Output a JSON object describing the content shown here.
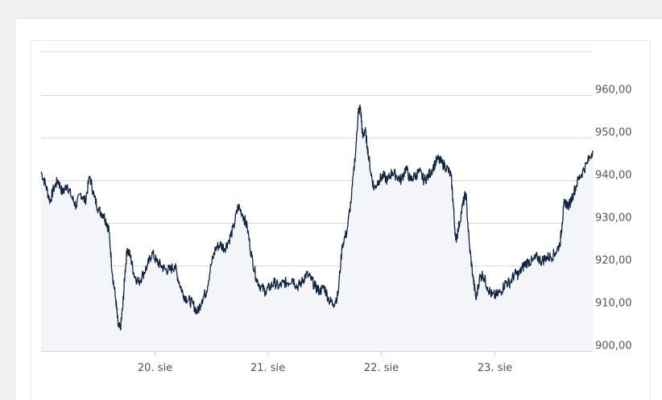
{
  "colors": {
    "line": "#0f2440",
    "area": "#f4f5f8",
    "grid": "#d9d9d9",
    "tick_text": "#555555"
  },
  "chart_data": {
    "type": "area",
    "grid": true,
    "ylim": [
      900,
      970
    ],
    "y_ticks": [
      {
        "value": 960,
        "label": "960,00"
      },
      {
        "value": 950,
        "label": "950,00"
      },
      {
        "value": 940,
        "label": "940,00"
      },
      {
        "value": 930,
        "label": "930,00"
      },
      {
        "value": 920,
        "label": "920,00"
      },
      {
        "value": 910,
        "label": "910,00"
      },
      {
        "value": 900,
        "label": "900,00"
      }
    ],
    "xlim": [
      19.0,
      23.87
    ],
    "x_ticks": [
      {
        "value": 20,
        "label": "20. sie"
      },
      {
        "value": 21,
        "label": "21. sie"
      },
      {
        "value": 22,
        "label": "22. sie"
      },
      {
        "value": 23,
        "label": "23. sie"
      }
    ],
    "series": [
      {
        "points": [
          [
            19.0,
            942
          ],
          [
            19.04,
            939
          ],
          [
            19.08,
            935
          ],
          [
            19.11,
            938
          ],
          [
            19.15,
            940
          ],
          [
            19.19,
            937
          ],
          [
            19.23,
            939
          ],
          [
            19.27,
            936
          ],
          [
            19.31,
            934
          ],
          [
            19.35,
            937
          ],
          [
            19.39,
            935
          ],
          [
            19.43,
            941
          ],
          [
            19.47,
            936
          ],
          [
            19.51,
            933
          ],
          [
            19.55,
            932
          ],
          [
            19.58,
            930
          ],
          [
            19.6,
            928
          ],
          [
            19.63,
            918
          ],
          [
            19.66,
            912
          ],
          [
            19.68,
            906
          ],
          [
            19.7,
            905
          ],
          [
            19.72,
            910
          ],
          [
            19.74,
            918
          ],
          [
            19.76,
            924
          ],
          [
            19.79,
            922
          ],
          [
            19.82,
            918
          ],
          [
            19.86,
            916
          ],
          [
            19.9,
            918
          ],
          [
            19.94,
            920
          ],
          [
            19.98,
            923
          ],
          [
            20.02,
            921
          ],
          [
            20.06,
            920
          ],
          [
            20.1,
            919
          ],
          [
            20.14,
            919
          ],
          [
            20.18,
            920
          ],
          [
            20.22,
            916
          ],
          [
            20.26,
            913
          ],
          [
            20.3,
            912
          ],
          [
            20.34,
            911
          ],
          [
            20.38,
            909
          ],
          [
            20.42,
            912
          ],
          [
            20.46,
            914
          ],
          [
            20.5,
            920
          ],
          [
            20.54,
            924
          ],
          [
            20.58,
            925
          ],
          [
            20.62,
            924
          ],
          [
            20.66,
            926
          ],
          [
            20.7,
            929
          ],
          [
            20.74,
            934
          ],
          [
            20.78,
            932
          ],
          [
            20.82,
            929
          ],
          [
            20.86,
            922
          ],
          [
            20.9,
            917
          ],
          [
            20.94,
            915
          ],
          [
            20.98,
            914
          ],
          [
            21.02,
            915
          ],
          [
            21.06,
            916
          ],
          [
            21.1,
            915
          ],
          [
            21.14,
            916
          ],
          [
            21.18,
            916
          ],
          [
            21.22,
            917
          ],
          [
            21.26,
            915
          ],
          [
            21.3,
            916
          ],
          [
            21.34,
            918
          ],
          [
            21.38,
            917
          ],
          [
            21.42,
            915
          ],
          [
            21.46,
            914
          ],
          [
            21.5,
            915
          ],
          [
            21.54,
            912
          ],
          [
            21.58,
            911
          ],
          [
            21.62,
            913
          ],
          [
            21.66,
            925
          ],
          [
            21.7,
            928
          ],
          [
            21.74,
            936
          ],
          [
            21.78,
            948
          ],
          [
            21.8,
            956
          ],
          [
            21.82,
            957
          ],
          [
            21.84,
            950
          ],
          [
            21.86,
            952
          ],
          [
            21.88,
            948
          ],
          [
            21.91,
            942
          ],
          [
            21.94,
            938
          ],
          [
            21.98,
            940
          ],
          [
            22.02,
            941
          ],
          [
            22.06,
            940
          ],
          [
            22.1,
            942
          ],
          [
            22.14,
            941
          ],
          [
            22.18,
            940
          ],
          [
            22.22,
            943
          ],
          [
            22.26,
            940
          ],
          [
            22.3,
            941
          ],
          [
            22.34,
            942
          ],
          [
            22.38,
            940
          ],
          [
            22.42,
            941
          ],
          [
            22.46,
            943
          ],
          [
            22.5,
            945
          ],
          [
            22.54,
            944
          ],
          [
            22.58,
            943
          ],
          [
            22.62,
            941
          ],
          [
            22.64,
            934
          ],
          [
            22.66,
            926
          ],
          [
            22.68,
            928
          ],
          [
            22.72,
            934
          ],
          [
            22.75,
            937
          ],
          [
            22.78,
            925
          ],
          [
            22.81,
            918
          ],
          [
            22.84,
            912
          ],
          [
            22.87,
            917
          ],
          [
            22.9,
            918
          ],
          [
            22.94,
            915
          ],
          [
            22.98,
            913
          ],
          [
            23.02,
            913
          ],
          [
            23.06,
            914
          ],
          [
            23.1,
            916
          ],
          [
            23.14,
            916
          ],
          [
            23.18,
            918
          ],
          [
            23.22,
            918
          ],
          [
            23.26,
            920
          ],
          [
            23.3,
            921
          ],
          [
            23.34,
            921
          ],
          [
            23.38,
            922
          ],
          [
            23.42,
            921
          ],
          [
            23.46,
            922
          ],
          [
            23.5,
            922
          ],
          [
            23.54,
            923
          ],
          [
            23.58,
            925
          ],
          [
            23.6,
            930
          ],
          [
            23.62,
            935
          ],
          [
            23.66,
            934
          ],
          [
            23.7,
            937
          ],
          [
            23.74,
            940
          ],
          [
            23.78,
            942
          ],
          [
            23.82,
            944
          ],
          [
            23.87,
            947
          ]
        ]
      }
    ]
  }
}
